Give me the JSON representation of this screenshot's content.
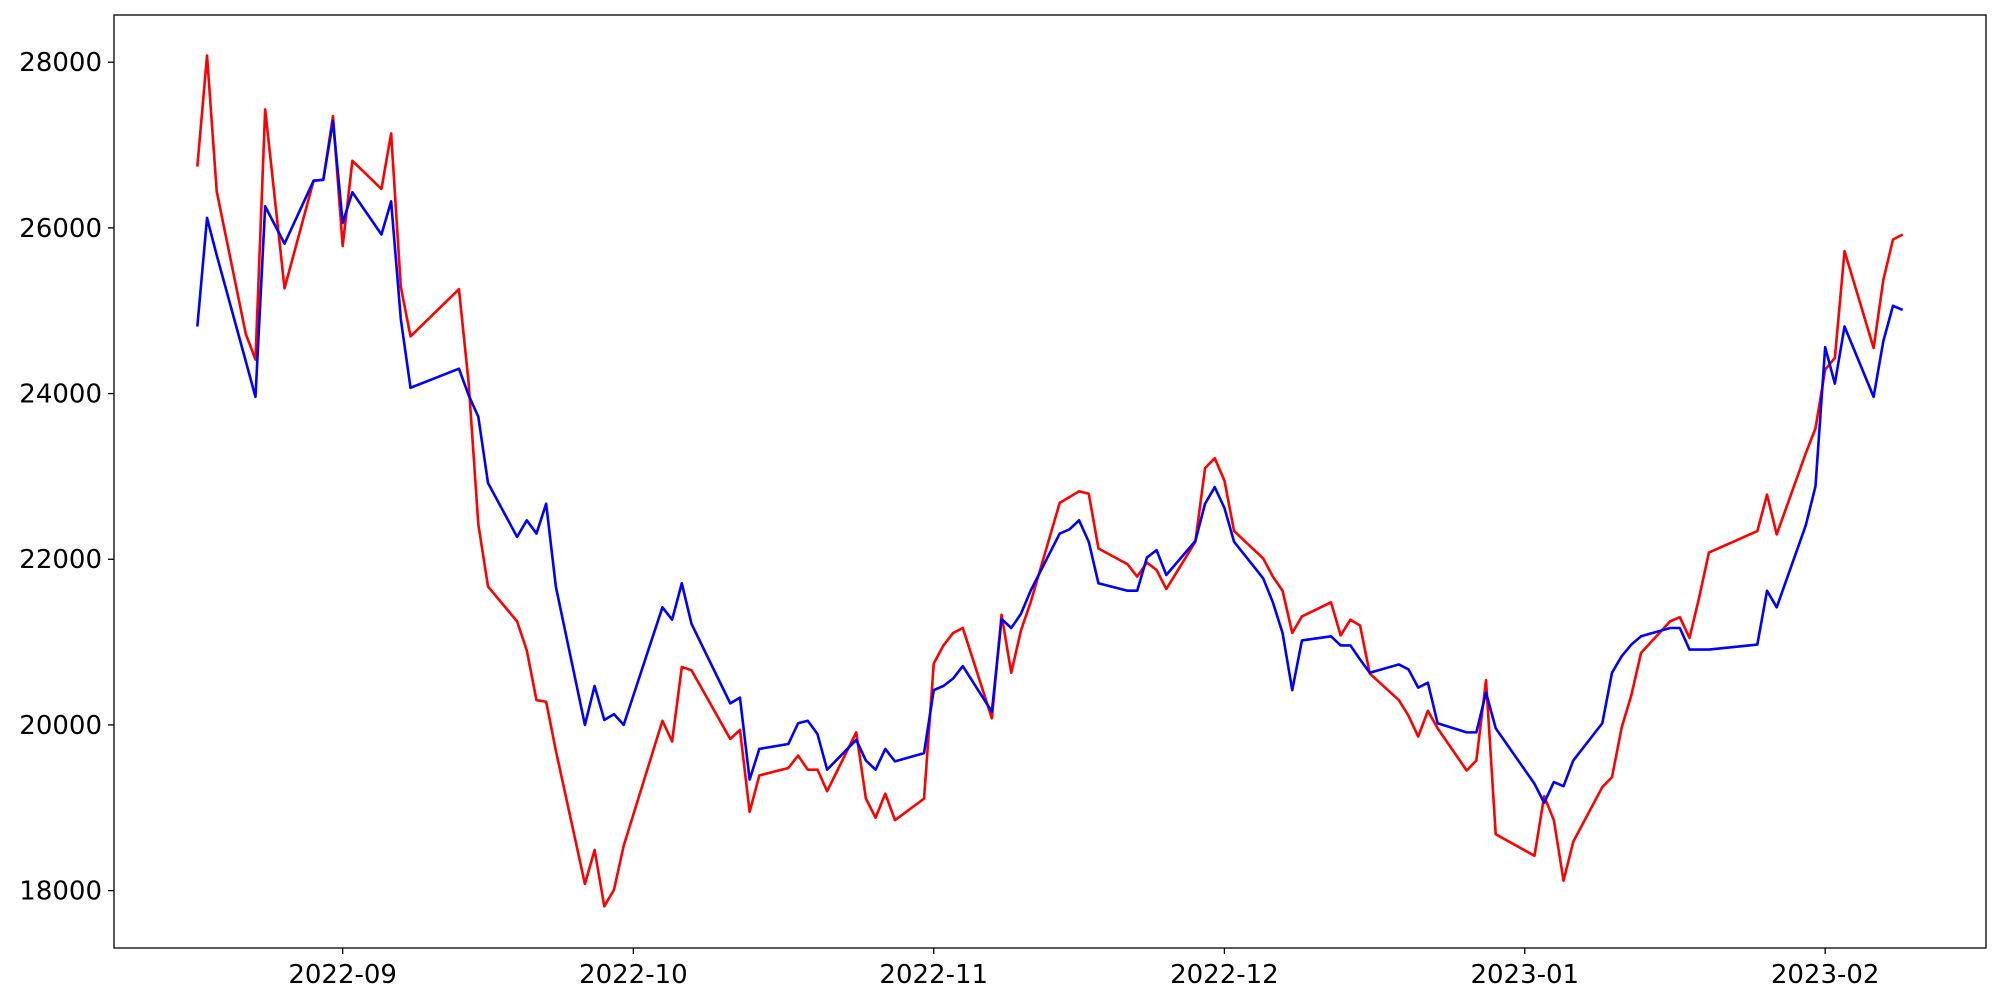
{
  "chart_data": {
    "type": "line",
    "x": [
      19221,
      19222,
      19223,
      19226,
      19227,
      19228,
      19230,
      19233,
      19234,
      19235,
      19236,
      19237,
      19240,
      19241,
      19242,
      19243,
      19248,
      19249,
      19250,
      19251,
      19254,
      19255,
      19256,
      19257,
      19258,
      19261,
      19262,
      19263,
      19264,
      19265,
      19269,
      19270,
      19271,
      19272,
      19276,
      19277,
      19278,
      19279,
      19282,
      19283,
      19284,
      19285,
      19286,
      19289,
      19290,
      19291,
      19292,
      19293,
      19296,
      19297,
      19298,
      19299,
      19300,
      19303,
      19304,
      19305,
      19306,
      19307,
      19310,
      19311,
      19312,
      19313,
      19314,
      19317,
      19318,
      19319,
      19320,
      19321,
      19324,
      19325,
      19326,
      19327,
      19328,
      19331,
      19332,
      19333,
      19334,
      19335,
      19338,
      19339,
      19340,
      19341,
      19342,
      19345,
      19346,
      19347,
      19348,
      19349,
      19352,
      19353,
      19354,
      19355,
      19359,
      19360,
      19361,
      19362,
      19363,
      19366,
      19367,
      19368,
      19369,
      19370,
      19373,
      19374,
      19375,
      19376,
      19377,
      19382,
      19383,
      19384,
      19387,
      19388,
      19389,
      19390,
      19391,
      19394,
      19395,
      19396,
      19397
    ],
    "series": [
      {
        "color": "#ff0000",
        "values": [
          26740,
          28080,
          26440,
          24720,
          24410,
          27430,
          25270,
          26570,
          26580,
          27350,
          25780,
          26810,
          26470,
          27140,
          25290,
          24690,
          25260,
          24130,
          22420,
          21670,
          21250,
          20900,
          20300,
          20280,
          19690,
          18080,
          18490,
          17810,
          18010,
          18540,
          20050,
          19800,
          20700,
          20660,
          19830,
          19940,
          18950,
          19390,
          19480,
          19630,
          19460,
          19460,
          19200,
          19910,
          19110,
          18880,
          19170,
          18850,
          19110,
          20740,
          20960,
          21110,
          21170,
          20080,
          21330,
          20630,
          21140,
          21480,
          22680,
          22750,
          22820,
          22790,
          22130,
          21940,
          21790,
          21960,
          21870,
          21640,
          22210,
          23100,
          23220,
          22950,
          22340,
          22010,
          21790,
          21620,
          21110,
          21310,
          21480,
          21080,
          21270,
          21200,
          20620,
          20300,
          20110,
          19860,
          20170,
          19960,
          19450,
          19570,
          20540,
          18680,
          18420,
          19140,
          18850,
          18120,
          18590,
          19250,
          19370,
          19970,
          20360,
          20870,
          21250,
          21300,
          21050,
          21540,
          22080,
          22340,
          22780,
          22300,
          23280,
          23580,
          24290,
          24430,
          25720,
          24550,
          25370,
          25860,
          25920
        ]
      },
      {
        "color": "#0000ff",
        "values": [
          24810,
          26120,
          25670,
          24390,
          23960,
          26260,
          25810,
          26570,
          26580,
          27290,
          26060,
          26430,
          25920,
          26320,
          24900,
          24070,
          24300,
          23980,
          23720,
          22920,
          22270,
          22470,
          22310,
          22670,
          21670,
          20000,
          20470,
          20060,
          20130,
          20000,
          21420,
          21270,
          21710,
          21220,
          20260,
          20330,
          19340,
          19710,
          19770,
          20020,
          20050,
          19890,
          19460,
          19820,
          19570,
          19460,
          19710,
          19560,
          19660,
          20420,
          20470,
          20560,
          20710,
          20160,
          21280,
          21170,
          21340,
          21620,
          22310,
          22360,
          22470,
          22210,
          21710,
          21620,
          21620,
          22020,
          22110,
          21810,
          22220,
          22670,
          22870,
          22620,
          22210,
          21770,
          21480,
          21110,
          20420,
          21020,
          21070,
          20960,
          20960,
          20790,
          20630,
          20730,
          20670,
          20450,
          20510,
          20020,
          19910,
          19910,
          20390,
          19960,
          19290,
          19060,
          19310,
          19260,
          19570,
          20020,
          20630,
          20830,
          20970,
          21070,
          21170,
          21170,
          20910,
          20910,
          20910,
          20970,
          21620,
          21420,
          22410,
          22880,
          24560,
          24120,
          24810,
          23960,
          24630,
          25060,
          25010
        ]
      }
    ],
    "xlim": [
      19212.4,
      19405.6
    ],
    "xticks": [
      {
        "value": 19236,
        "label": "2022-09"
      },
      {
        "value": 19266,
        "label": "2022-10"
      },
      {
        "value": 19297,
        "label": "2022-11"
      },
      {
        "value": 19327,
        "label": "2022-12"
      },
      {
        "value": 19358,
        "label": "2023-01"
      },
      {
        "value": 19389,
        "label": "2023-02"
      }
    ],
    "ylim": [
      17307,
      28570
    ],
    "yticks": [
      18000,
      20000,
      22000,
      24000,
      26000,
      28000
    ]
  }
}
